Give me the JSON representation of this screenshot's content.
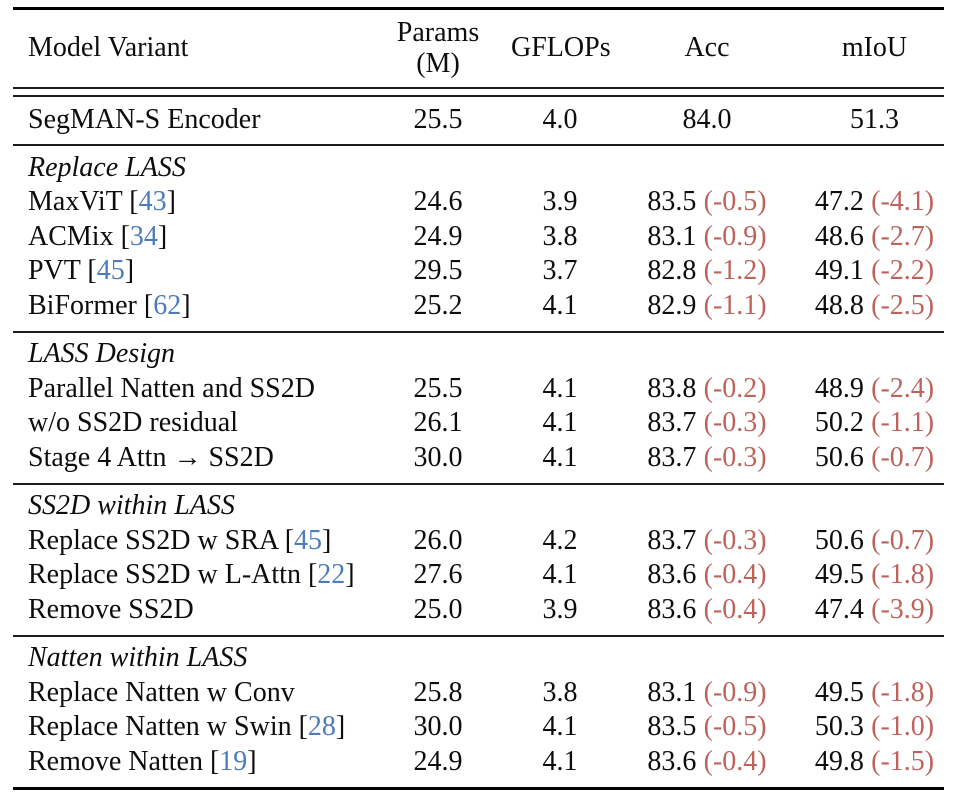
{
  "header": {
    "model_variant": "Model Variant",
    "params_line1": "Params",
    "params_line2": "(M)",
    "gflops": "GFLOPs",
    "acc": "Acc",
    "miou": "mIoU"
  },
  "colors": {
    "text": "#0d0d0d",
    "citation_blue": "#4d7cbd",
    "delta_red": "#bd635c"
  },
  "baseline": {
    "label": "SegMAN-S Encoder",
    "params": "25.5",
    "gflops": "4.0",
    "acc": "84.0",
    "miou": "51.3"
  },
  "sections": [
    {
      "heading": "Replace LASS",
      "rows": [
        {
          "label": "MaxViT",
          "cite": "43",
          "params": "24.6",
          "gflops": "3.9",
          "acc": "83.5",
          "acc_delta": "(-0.5)",
          "miou": "47.2",
          "miou_delta": "(-4.1)"
        },
        {
          "label": "ACMix",
          "cite": "34",
          "params": "24.9",
          "gflops": "3.8",
          "acc": "83.1",
          "acc_delta": "(-0.9)",
          "miou": "48.6",
          "miou_delta": "(-2.7)"
        },
        {
          "label": "PVT",
          "cite": "45",
          "params": "29.5",
          "gflops": "3.7",
          "acc": "82.8",
          "acc_delta": "(-1.2)",
          "miou": "49.1",
          "miou_delta": "(-2.2)"
        },
        {
          "label": "BiFormer",
          "cite": "62",
          "params": "25.2",
          "gflops": "4.1",
          "acc": "82.9",
          "acc_delta": "(-1.1)",
          "miou": "48.8",
          "miou_delta": "(-2.5)"
        }
      ]
    },
    {
      "heading": "LASS Design",
      "rows": [
        {
          "label": "Parallel Natten and SS2D",
          "params": "25.5",
          "gflops": "4.1",
          "acc": "83.8",
          "acc_delta": "(-0.2)",
          "miou": "48.9",
          "miou_delta": "(-2.4)"
        },
        {
          "label": "w/o SS2D residual",
          "params": "26.1",
          "gflops": "4.1",
          "acc": "83.7",
          "acc_delta": "(-0.3)",
          "miou": "50.2",
          "miou_delta": "(-1.1)"
        },
        {
          "label": "Stage 4 Attn → SS2D",
          "params": "30.0",
          "gflops": "4.1",
          "acc": "83.7",
          "acc_delta": "(-0.3)",
          "miou": "50.6",
          "miou_delta": "(-0.7)"
        }
      ]
    },
    {
      "heading": "SS2D within LASS",
      "rows": [
        {
          "label": "Replace SS2D w SRA",
          "cite": "45",
          "params": "26.0",
          "gflops": "4.2",
          "acc": "83.7",
          "acc_delta": "(-0.3)",
          "miou": "50.6",
          "miou_delta": "(-0.7)"
        },
        {
          "label": "Replace SS2D w L-Attn",
          "cite": "22",
          "params": "27.6",
          "gflops": "4.1",
          "acc": "83.6",
          "acc_delta": "(-0.4)",
          "miou": "49.5",
          "miou_delta": "(-1.8)"
        },
        {
          "label": "Remove SS2D",
          "params": "25.0",
          "gflops": "3.9",
          "acc": "83.6",
          "acc_delta": "(-0.4)",
          "miou": "47.4",
          "miou_delta": "(-3.9)"
        }
      ]
    },
    {
      "heading": "Natten within LASS",
      "rows": [
        {
          "label": "Replace Natten w Conv",
          "params": "25.8",
          "gflops": "3.8",
          "acc": "83.1",
          "acc_delta": "(-0.9)",
          "miou": "49.5",
          "miou_delta": "(-1.8)"
        },
        {
          "label": "Replace Natten w Swin",
          "cite": "28",
          "params": "30.0",
          "gflops": "4.1",
          "acc": "83.5",
          "acc_delta": "(-0.5)",
          "miou": "50.3",
          "miou_delta": "(-1.0)"
        },
        {
          "label": "Remove Natten",
          "cite": "19",
          "params": "24.9",
          "gflops": "4.1",
          "acc": "83.6",
          "acc_delta": "(-0.4)",
          "miou": "49.8",
          "miou_delta": "(-1.5)"
        }
      ]
    }
  ]
}
